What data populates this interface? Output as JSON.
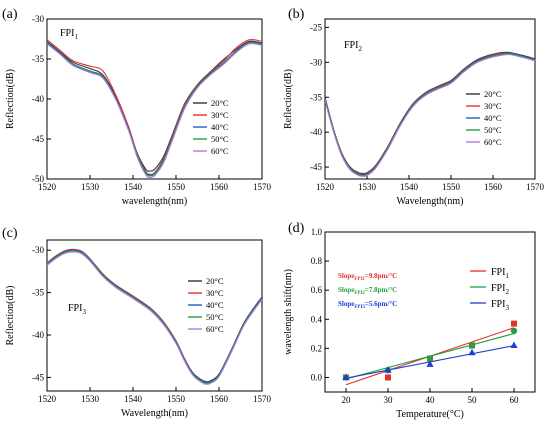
{
  "temp_colors": {
    "20°C": "#333333",
    "30°C": "#e8302a",
    "40°C": "#1f5fc4",
    "50°C": "#22a040",
    "60°C": "#b07ae0"
  },
  "chart_data": [
    {
      "type": "line",
      "panel": "(a)",
      "annotation": "FPI",
      "annotation_sub": "1",
      "xlabel": "wavelength(nm)",
      "ylabel": "Reflection(dB)",
      "xlim": [
        1520,
        1570
      ],
      "ylim": [
        -50,
        -30
      ],
      "xticks": [
        1520,
        1530,
        1540,
        1550,
        1560,
        1570
      ],
      "yticks": [
        -50,
        -45,
        -40,
        -35,
        -30
      ],
      "legend_position": "center-right",
      "series": [
        {
          "name": "20°C",
          "x": [
            1520,
            1523,
            1526,
            1530,
            1533,
            1536,
            1539,
            1541,
            1543,
            1544,
            1545,
            1547,
            1549,
            1552,
            1555,
            1558,
            1561,
            1564,
            1567,
            1570
          ],
          "y": [
            -32.8,
            -34.1,
            -35.4,
            -36.2,
            -37.0,
            -39.7,
            -43.6,
            -46.8,
            -48.8,
            -49.0,
            -48.8,
            -47.3,
            -44.7,
            -40.6,
            -38.2,
            -36.6,
            -35.1,
            -33.8,
            -32.8,
            -33.0
          ]
        },
        {
          "name": "30°C",
          "x": [
            1520,
            1523,
            1526,
            1530,
            1533,
            1536,
            1539,
            1541,
            1543,
            1544,
            1545,
            1547,
            1549,
            1552,
            1555,
            1558,
            1561,
            1564,
            1567,
            1570
          ],
          "y": [
            -32.6,
            -33.9,
            -35.2,
            -35.9,
            -36.5,
            -39.5,
            -43.5,
            -46.9,
            -49.1,
            -49.4,
            -49.2,
            -47.6,
            -44.9,
            -40.7,
            -38.3,
            -36.7,
            -35.3,
            -33.6,
            -32.6,
            -32.8
          ]
        },
        {
          "name": "40°C",
          "x": [
            1520,
            1523,
            1526,
            1530,
            1533,
            1536,
            1539,
            1541,
            1543,
            1544,
            1545,
            1547,
            1549,
            1552,
            1555,
            1558,
            1561,
            1564,
            1567,
            1570
          ],
          "y": [
            -32.9,
            -34.2,
            -35.6,
            -36.5,
            -37.2,
            -39.9,
            -43.8,
            -47.0,
            -49.2,
            -49.5,
            -49.3,
            -47.8,
            -45.1,
            -40.9,
            -38.4,
            -36.8,
            -35.5,
            -34.0,
            -32.9,
            -33.1
          ]
        },
        {
          "name": "50°C",
          "x": [
            1520,
            1523,
            1526,
            1530,
            1533,
            1536,
            1539,
            1541,
            1543,
            1544,
            1545,
            1547,
            1549,
            1552,
            1555,
            1558,
            1561,
            1564,
            1567,
            1570
          ],
          "y": [
            -33.0,
            -34.3,
            -35.7,
            -36.6,
            -37.3,
            -40.0,
            -43.9,
            -47.1,
            -49.3,
            -49.6,
            -49.4,
            -47.9,
            -45.2,
            -41.0,
            -38.5,
            -36.9,
            -35.6,
            -34.1,
            -33.0,
            -33.2
          ]
        },
        {
          "name": "60°C",
          "x": [
            1520,
            1523,
            1526,
            1530,
            1533,
            1536,
            1539,
            1541,
            1543,
            1544,
            1545,
            1547,
            1549,
            1552,
            1555,
            1558,
            1561,
            1564,
            1567,
            1570
          ],
          "y": [
            -33.1,
            -34.4,
            -35.8,
            -36.7,
            -37.4,
            -40.1,
            -44.0,
            -47.3,
            -49.5,
            -49.8,
            -49.6,
            -48.1,
            -45.4,
            -41.2,
            -38.6,
            -37.0,
            -35.7,
            -34.2,
            -33.1,
            -33.3
          ]
        }
      ]
    },
    {
      "type": "line",
      "panel": "(b)",
      "annotation": "FPI",
      "annotation_sub": "2",
      "xlabel": "Wavelength(nm)",
      "ylabel": "Reflection(dB)",
      "xlim": [
        1520,
        1570
      ],
      "ylim": [
        -46.7,
        -23.8
      ],
      "xticks": [
        1520,
        1530,
        1540,
        1550,
        1560,
        1570
      ],
      "yticks": [
        -45,
        -40,
        -35,
        -30,
        -25
      ],
      "legend_position": "right",
      "series": [
        {
          "name": "20°C",
          "x": [
            1520,
            1522,
            1524,
            1526,
            1528,
            1529,
            1530,
            1532,
            1535,
            1538,
            1541,
            1544,
            1547,
            1550,
            1553,
            1556,
            1559,
            1562,
            1564,
            1567,
            1570
          ],
          "y": [
            -35.0,
            -39.5,
            -43.0,
            -45.0,
            -45.8,
            -45.9,
            -45.8,
            -44.8,
            -42.0,
            -38.6,
            -35.9,
            -34.3,
            -33.4,
            -32.6,
            -31.0,
            -29.7,
            -29.0,
            -28.6,
            -28.6,
            -29.0,
            -29.5
          ]
        },
        {
          "name": "30°C",
          "x": [
            1520,
            1522,
            1524,
            1526,
            1528,
            1529,
            1530,
            1532,
            1535,
            1538,
            1541,
            1544,
            1547,
            1550,
            1553,
            1556,
            1559,
            1562,
            1564,
            1567,
            1570
          ],
          "y": [
            -35.2,
            -39.6,
            -43.1,
            -45.1,
            -45.9,
            -46.0,
            -45.9,
            -44.9,
            -42.1,
            -38.7,
            -36.0,
            -34.4,
            -33.5,
            -32.7,
            -31.1,
            -29.8,
            -29.1,
            -28.7,
            -28.7,
            -29.1,
            -29.6
          ]
        },
        {
          "name": "40°C",
          "x": [
            1520,
            1522,
            1524,
            1526,
            1528,
            1529,
            1530,
            1532,
            1535,
            1538,
            1541,
            1544,
            1547,
            1550,
            1553,
            1556,
            1559,
            1562,
            1564,
            1567,
            1570
          ],
          "y": [
            -35.3,
            -39.7,
            -43.2,
            -45.2,
            -46.0,
            -46.1,
            -46.0,
            -45.0,
            -42.2,
            -38.8,
            -36.1,
            -34.5,
            -33.6,
            -32.8,
            -31.2,
            -29.9,
            -29.2,
            -28.8,
            -28.7,
            -29.1,
            -29.6
          ]
        },
        {
          "name": "50°C",
          "x": [
            1520,
            1522,
            1524,
            1526,
            1528,
            1529,
            1530,
            1532,
            1535,
            1538,
            1541,
            1544,
            1547,
            1550,
            1553,
            1556,
            1559,
            1562,
            1564,
            1567,
            1570
          ],
          "y": [
            -35.4,
            -39.8,
            -43.3,
            -45.3,
            -46.1,
            -46.2,
            -46.1,
            -45.1,
            -42.3,
            -38.9,
            -36.2,
            -34.6,
            -33.7,
            -32.9,
            -31.3,
            -30.0,
            -29.3,
            -28.9,
            -28.8,
            -29.2,
            -29.7
          ]
        },
        {
          "name": "60°C",
          "x": [
            1520,
            1522,
            1524,
            1526,
            1528,
            1529,
            1530,
            1532,
            1535,
            1538,
            1541,
            1544,
            1547,
            1550,
            1553,
            1556,
            1559,
            1562,
            1564,
            1567,
            1570
          ],
          "y": [
            -35.5,
            -39.9,
            -43.4,
            -45.4,
            -46.2,
            -46.3,
            -46.2,
            -45.2,
            -42.4,
            -39.0,
            -36.3,
            -34.7,
            -33.8,
            -33.0,
            -31.4,
            -30.1,
            -29.4,
            -29.0,
            -28.9,
            -29.3,
            -29.8
          ]
        }
      ]
    },
    {
      "type": "line",
      "panel": "(c)",
      "annotation": "FPI",
      "annotation_sub": "3",
      "xlabel": "Wavelength(nm)",
      "ylabel": "Reflection(dB)",
      "xlim": [
        1520,
        1570
      ],
      "ylim": [
        -46.6,
        -28.8
      ],
      "xticks": [
        1520,
        1530,
        1540,
        1550,
        1560,
        1570
      ],
      "yticks": [
        -45,
        -40,
        -35,
        -30
      ],
      "legend_position": "center-right",
      "series": [
        {
          "name": "20°C",
          "x": [
            1520,
            1522,
            1524,
            1526,
            1528,
            1530,
            1533,
            1536,
            1540,
            1544,
            1547,
            1550,
            1552,
            1554,
            1556,
            1557,
            1558,
            1560,
            1563,
            1566,
            1570
          ],
          "y": [
            -31.6,
            -30.8,
            -30.2,
            -30.0,
            -30.2,
            -31.1,
            -32.9,
            -34.2,
            -35.5,
            -36.8,
            -38.4,
            -40.7,
            -42.8,
            -44.5,
            -45.3,
            -45.5,
            -45.4,
            -44.6,
            -41.6,
            -38.4,
            -35.5
          ]
        },
        {
          "name": "30°C",
          "x": [
            1520,
            1522,
            1524,
            1526,
            1528,
            1530,
            1533,
            1536,
            1540,
            1544,
            1547,
            1550,
            1552,
            1554,
            1556,
            1557,
            1558,
            1560,
            1563,
            1566,
            1570
          ],
          "y": [
            -31.5,
            -30.7,
            -30.1,
            -29.9,
            -30.1,
            -31.0,
            -32.8,
            -34.1,
            -35.4,
            -36.8,
            -38.4,
            -40.7,
            -42.8,
            -44.6,
            -45.4,
            -45.6,
            -45.5,
            -44.7,
            -41.7,
            -38.5,
            -35.6
          ]
        },
        {
          "name": "40°C",
          "x": [
            1520,
            1522,
            1524,
            1526,
            1528,
            1530,
            1533,
            1536,
            1540,
            1544,
            1547,
            1550,
            1552,
            1554,
            1556,
            1557,
            1558,
            1560,
            1563,
            1566,
            1570
          ],
          "y": [
            -31.6,
            -30.8,
            -30.2,
            -30.0,
            -30.2,
            -31.1,
            -32.9,
            -34.2,
            -35.5,
            -36.9,
            -38.5,
            -40.8,
            -42.9,
            -44.6,
            -45.4,
            -45.6,
            -45.5,
            -44.7,
            -41.7,
            -38.5,
            -35.6
          ]
        },
        {
          "name": "50°C",
          "x": [
            1520,
            1522,
            1524,
            1526,
            1528,
            1530,
            1533,
            1536,
            1540,
            1544,
            1547,
            1550,
            1552,
            1554,
            1556,
            1557,
            1558,
            1560,
            1563,
            1566,
            1570
          ],
          "y": [
            -31.7,
            -30.9,
            -30.3,
            -30.1,
            -30.3,
            -31.2,
            -33.0,
            -34.3,
            -35.6,
            -37.0,
            -38.6,
            -40.9,
            -43.0,
            -44.7,
            -45.5,
            -45.7,
            -45.6,
            -44.8,
            -41.8,
            -38.6,
            -35.7
          ]
        },
        {
          "name": "60°C",
          "x": [
            1520,
            1522,
            1524,
            1526,
            1528,
            1530,
            1533,
            1536,
            1540,
            1544,
            1547,
            1550,
            1552,
            1554,
            1556,
            1557,
            1558,
            1560,
            1563,
            1566,
            1570
          ],
          "y": [
            -31.8,
            -31.0,
            -30.4,
            -30.2,
            -30.4,
            -31.3,
            -33.1,
            -34.4,
            -35.7,
            -37.1,
            -38.7,
            -41.0,
            -43.1,
            -44.8,
            -45.6,
            -45.8,
            -45.7,
            -44.9,
            -41.9,
            -38.7,
            -35.8
          ]
        }
      ]
    },
    {
      "type": "scatter",
      "panel": "(d)",
      "xlabel": "Temperature(°C)",
      "ylabel": "wavelength shift(nm)",
      "xlim": [
        15,
        65
      ],
      "ylim": [
        -0.1,
        1.0
      ],
      "xticks": [
        20,
        30,
        40,
        50,
        60
      ],
      "yticks": [
        0.0,
        0.2,
        0.4,
        0.6,
        0.8,
        1.0
      ],
      "legend_position": "top-right",
      "annotations": [
        {
          "prefix": "Slope",
          "sub": "FPI1",
          "suffix": "=9.8pm/°C",
          "color": "#e8302a"
        },
        {
          "prefix": "Slope",
          "sub": "FPI2",
          "suffix": "=7.8pm/°C",
          "color": "#22a040"
        },
        {
          "prefix": "Slope",
          "sub": "FPI3",
          "suffix": "=5.6pm/°C",
          "color": "#1f3fd0"
        }
      ],
      "series": [
        {
          "name": "FPI",
          "name_sub": "1",
          "marker": "square",
          "color": "#e8302a",
          "x": [
            20,
            30,
            40,
            50,
            60
          ],
          "y": [
            0.0,
            0.0,
            0.13,
            0.22,
            0.37
          ],
          "fit": [
            -0.05,
            0.342
          ]
        },
        {
          "name": "FPI",
          "name_sub": "2",
          "marker": "circle",
          "color": "#22a040",
          "x": [
            20,
            30,
            40,
            50,
            60
          ],
          "y": [
            0.0,
            0.05,
            0.13,
            0.22,
            0.32
          ],
          "fit": [
            -0.01,
            0.302
          ]
        },
        {
          "name": "FPI",
          "name_sub": "3",
          "marker": "triangle",
          "color": "#1f3fd0",
          "x": [
            20,
            30,
            40,
            50,
            60
          ],
          "y": [
            0.0,
            0.05,
            0.09,
            0.17,
            0.22
          ],
          "fit": [
            -0.005,
            0.219
          ]
        }
      ]
    }
  ]
}
